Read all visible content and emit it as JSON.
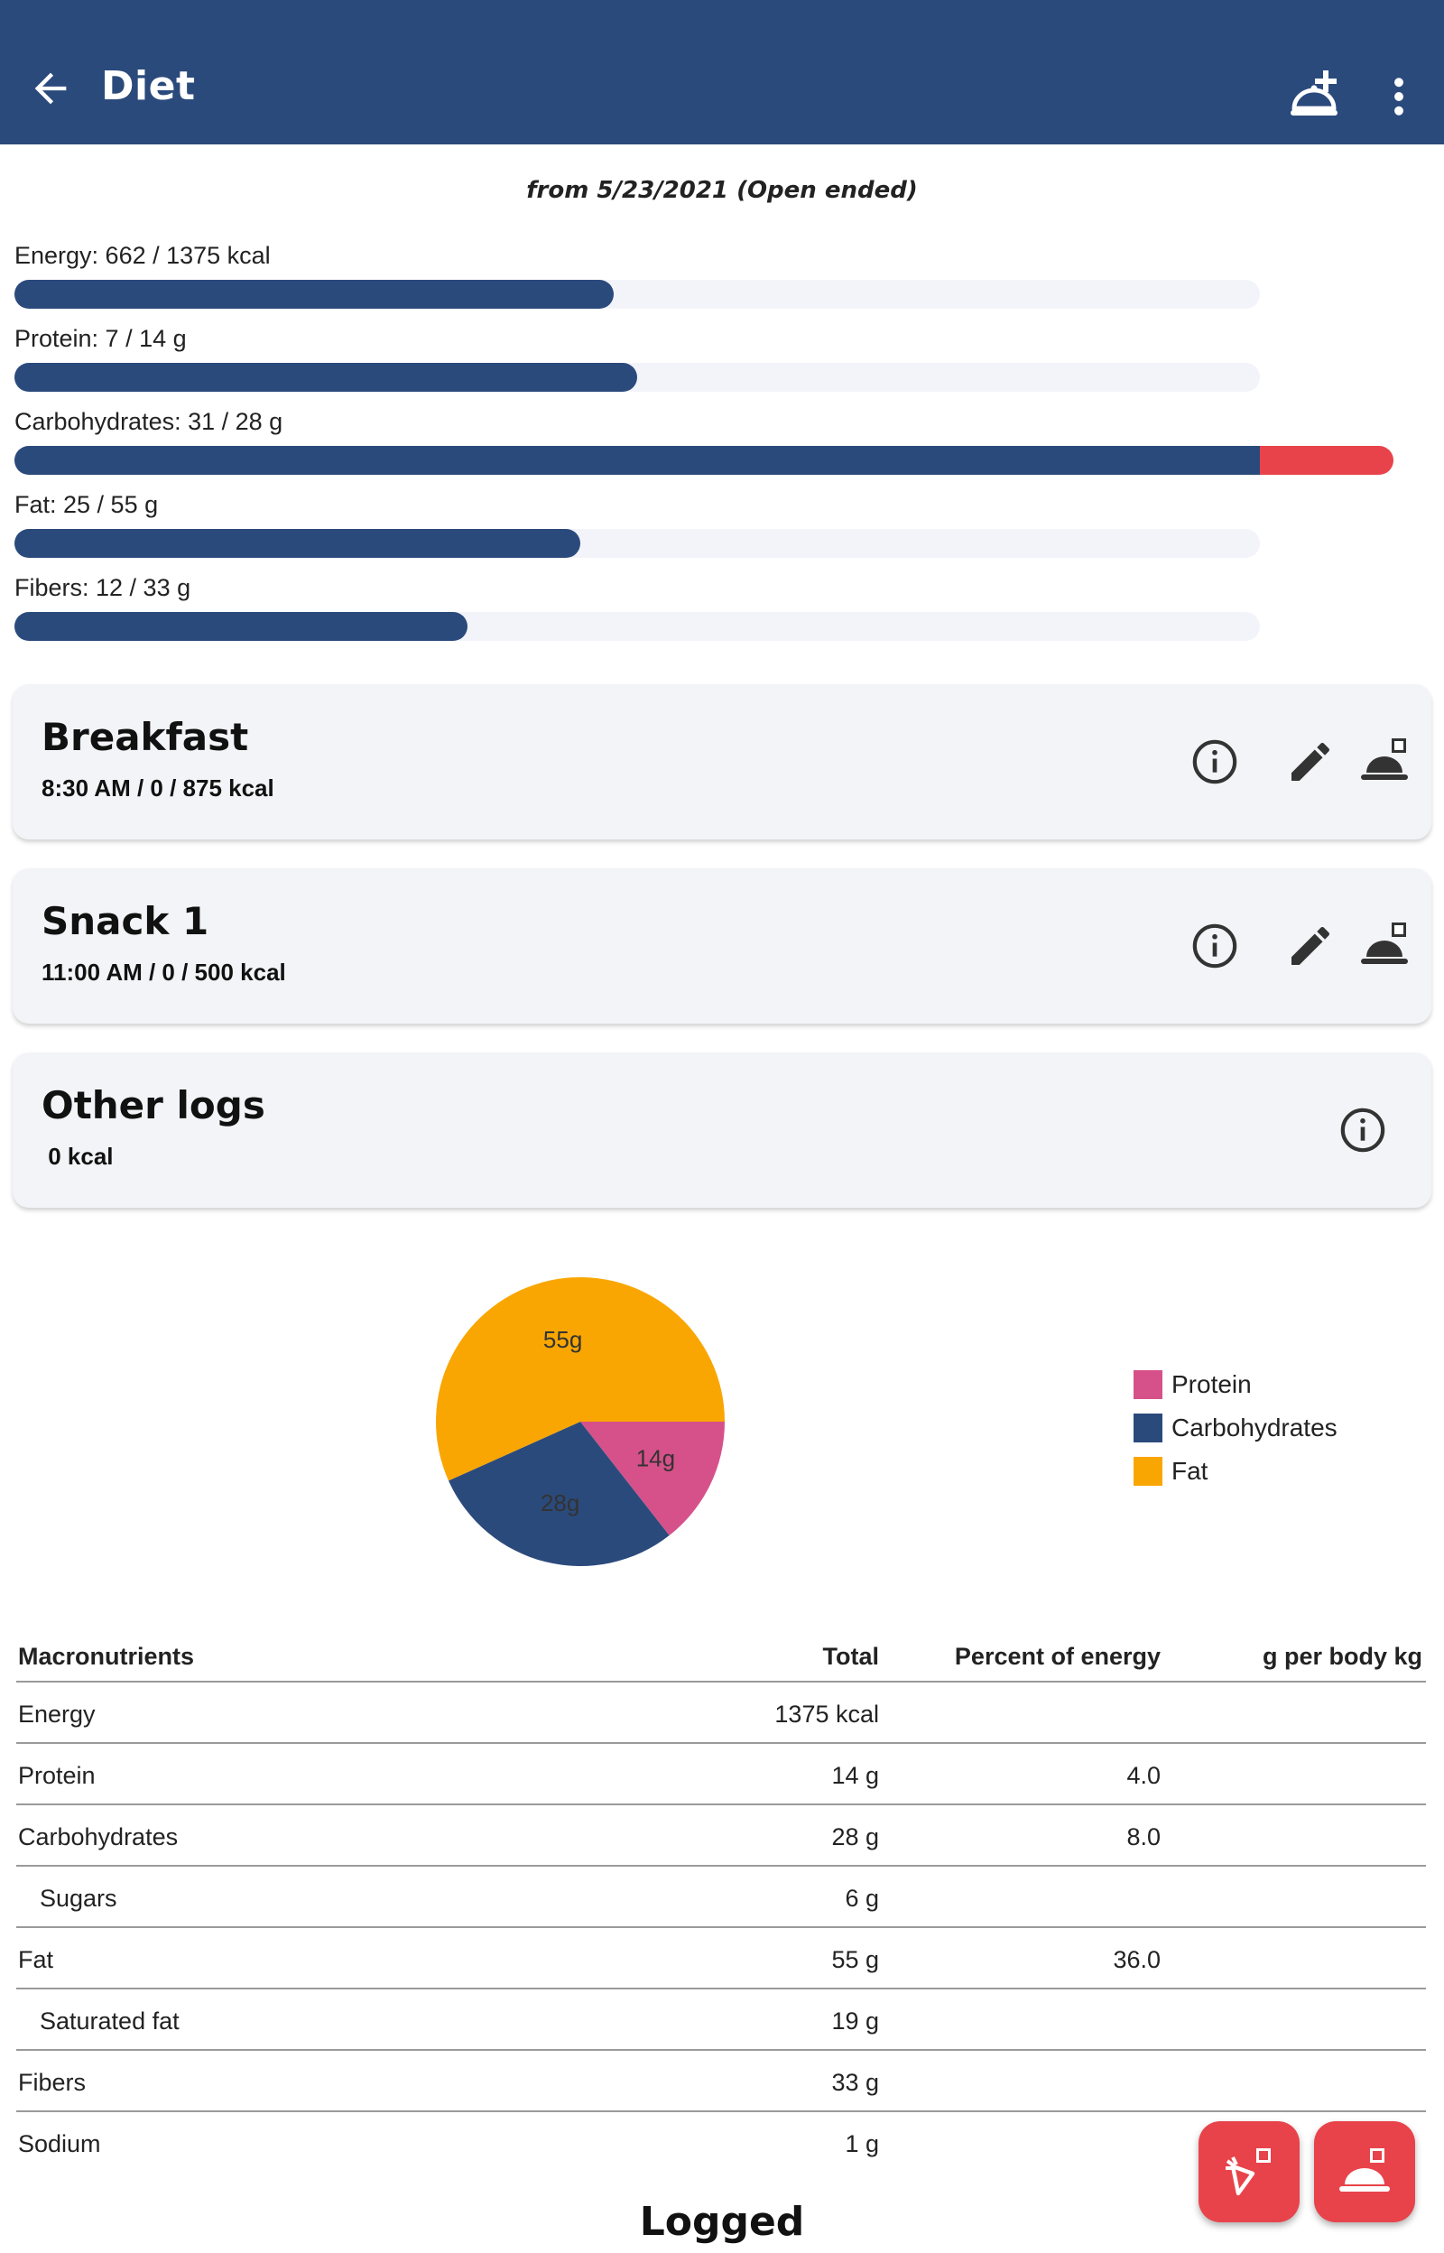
{
  "appbar": {
    "title": "Diet",
    "back_icon": "arrow-left-icon",
    "add_icon": "add-meal-icon",
    "more_icon": "more-vertical-icon",
    "bg": "#2b4a7c"
  },
  "period": "from 5/23/2021 (Open ended)",
  "goals": [
    {
      "label": "Energy: 662 / 1375 kcal",
      "fraction": 0.4815
    },
    {
      "label": "Protein: 7 / 14 g",
      "fraction": 0.5
    },
    {
      "label": "Carbohydrates: 31 / 28 g",
      "fraction": 1.0,
      "over_fraction": 0.107
    },
    {
      "label": "Fat: 25 / 55 g",
      "fraction": 0.4545
    },
    {
      "label": "Fibers: 12 / 33 g",
      "fraction": 0.3636
    }
  ],
  "meals": [
    {
      "name": "Breakfast",
      "sub": "8:30 AM /  0 / 875 kcal"
    },
    {
      "name": "Snack 1",
      "sub": "11:00 AM /  0 / 500 kcal"
    },
    {
      "name": "Other logs",
      "sub": " 0 kcal"
    }
  ],
  "chart_data": {
    "type": "pie",
    "slices": [
      {
        "name": "Protein",
        "value": 14,
        "label": "14g",
        "color": "#d6518a"
      },
      {
        "name": "Carbohydrates",
        "value": 28,
        "label": "28g",
        "color": "#2b4a7c"
      },
      {
        "name": "Fat",
        "value": 55,
        "label": "55g",
        "color": "#f9a602"
      }
    ],
    "legend": [
      "Protein",
      "Carbohydrates",
      "Fat"
    ],
    "legend_position": "right"
  },
  "table": {
    "headers": [
      "Macronutrients",
      "Total",
      "Percent of energy",
      "g per body kg"
    ],
    "rows": [
      {
        "name": "Energy",
        "total": "1375 kcal",
        "pct": "",
        "gkg": ""
      },
      {
        "name": "Protein",
        "total": "14 g",
        "pct": "4.0",
        "gkg": ""
      },
      {
        "name": "Carbohydrates",
        "total": "28 g",
        "pct": "8.0",
        "gkg": ""
      },
      {
        "name": "Sugars",
        "total": "6 g",
        "pct": "",
        "gkg": ""
      },
      {
        "name": "Fat",
        "total": "55 g",
        "pct": "36.0",
        "gkg": ""
      },
      {
        "name": "Saturated fat",
        "total": "19 g",
        "pct": "",
        "gkg": ""
      },
      {
        "name": "Fibers",
        "total": "33 g",
        "pct": "",
        "gkg": ""
      },
      {
        "name": "Sodium",
        "total": "1 g",
        "pct": "",
        "gkg": ""
      }
    ]
  },
  "logged_heading": "Logged",
  "fabs": [
    "log-ingredient-icon",
    "log-meal-icon"
  ]
}
